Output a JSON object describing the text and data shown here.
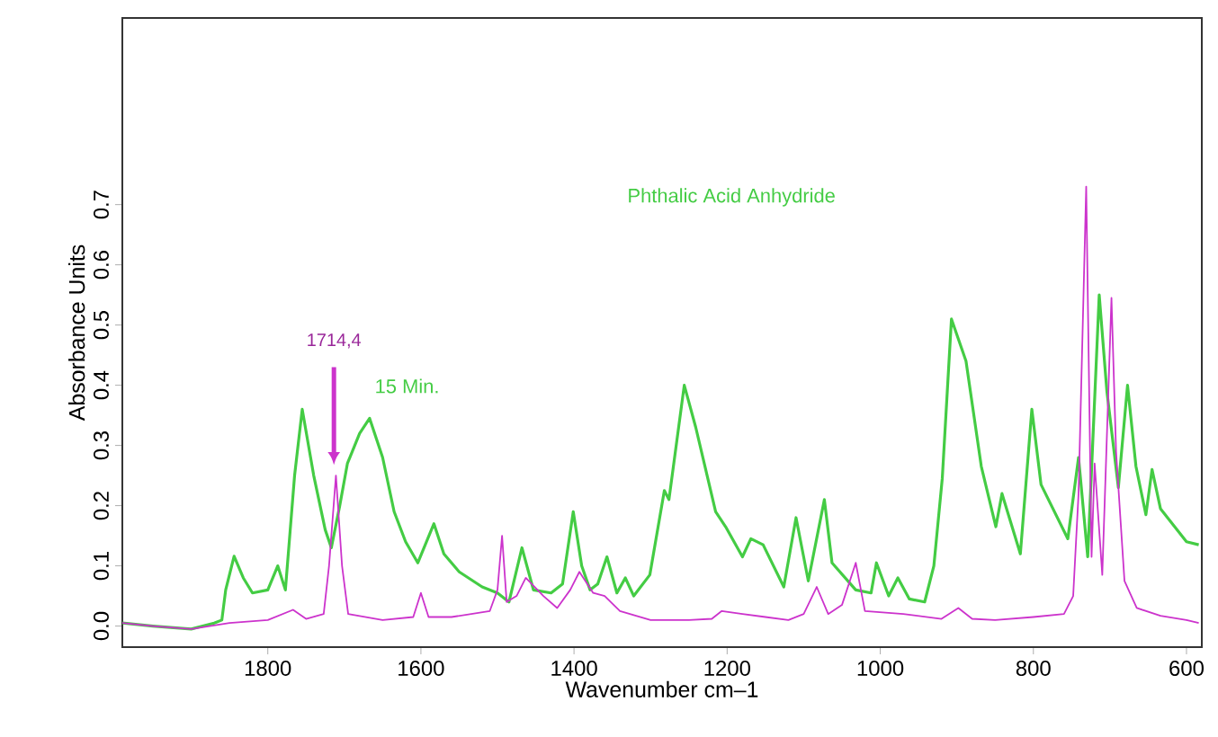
{
  "chart_data": {
    "type": "line",
    "xlabel": "Wavenumber cm–1",
    "ylabel": "Absorbance Units",
    "xlim": [
      1990,
      580
    ],
    "ylim": [
      -0.035,
      1.01
    ],
    "xticks": [
      1800,
      1600,
      1400,
      1200,
      1000,
      800,
      600
    ],
    "yticks": [
      {
        "value": 0,
        "label": "0.0"
      },
      {
        "value": 0.1,
        "label": "0.1"
      },
      {
        "value": 0.2,
        "label": "0.2"
      },
      {
        "value": 0.3,
        "label": "0.3"
      },
      {
        "value": 0.4,
        "label": "0.4"
      },
      {
        "value": 0.5,
        "label": "0.5"
      },
      {
        "value": 0.6,
        "label": "0.6"
      },
      {
        "value": 0.7,
        "label": "0.7"
      }
    ],
    "series": [
      {
        "name": "Phthalic Acid Anhydride",
        "color": "#44cc44",
        "x": [
          1990,
          1950,
          1900,
          1870,
          1860,
          1855,
          1844,
          1832,
          1820,
          1800,
          1787,
          1777,
          1765,
          1755,
          1740,
          1725,
          1717,
          1706,
          1696,
          1680,
          1667,
          1650,
          1635,
          1620,
          1604,
          1583,
          1570,
          1550,
          1520,
          1500,
          1485,
          1468,
          1453,
          1430,
          1415,
          1401,
          1390,
          1379,
          1369,
          1357,
          1344,
          1333,
          1322,
          1301,
          1282,
          1276,
          1256,
          1241,
          1215,
          1202,
          1180,
          1169,
          1153,
          1126,
          1110,
          1094,
          1073,
          1063,
          1032,
          1012,
          1005,
          989,
          977,
          962,
          942,
          930,
          919,
          907,
          888,
          868,
          849,
          841,
          817,
          802,
          790,
          755,
          741,
          729,
          714,
          704,
          689,
          677,
          666,
          653,
          645,
          634,
          600,
          584
        ],
        "values": [
          0.005,
          0.0,
          -0.005,
          0.005,
          0.01,
          0.06,
          0.116,
          0.08,
          0.055,
          0.06,
          0.1,
          0.06,
          0.25,
          0.36,
          0.25,
          0.16,
          0.13,
          0.2,
          0.27,
          0.32,
          0.345,
          0.28,
          0.19,
          0.14,
          0.105,
          0.17,
          0.12,
          0.09,
          0.065,
          0.055,
          0.04,
          0.13,
          0.06,
          0.055,
          0.07,
          0.19,
          0.1,
          0.06,
          0.07,
          0.115,
          0.055,
          0.08,
          0.05,
          0.085,
          0.225,
          0.21,
          0.4,
          0.33,
          0.19,
          0.165,
          0.115,
          0.145,
          0.135,
          0.065,
          0.18,
          0.075,
          0.21,
          0.105,
          0.06,
          0.055,
          0.105,
          0.05,
          0.08,
          0.045,
          0.04,
          0.1,
          0.245,
          0.51,
          0.44,
          0.265,
          0.165,
          0.22,
          0.12,
          0.36,
          0.235,
          0.145,
          0.28,
          0.115,
          0.55,
          0.39,
          0.23,
          0.4,
          0.265,
          0.185,
          0.26,
          0.195,
          0.14,
          0.135
        ]
      },
      {
        "color": "#cc33cc",
        "x": [
          1990,
          1950,
          1900,
          1850,
          1800,
          1767,
          1750,
          1727,
          1720,
          1711,
          1703,
          1695,
          1650,
          1610,
          1600,
          1590,
          1560,
          1510,
          1500,
          1494,
          1488,
          1475,
          1463,
          1440,
          1422,
          1405,
          1393,
          1375,
          1360,
          1340,
          1300,
          1250,
          1220,
          1207,
          1180,
          1150,
          1120,
          1100,
          1083,
          1068,
          1050,
          1032,
          1020,
          970,
          920,
          898,
          880,
          850,
          800,
          760,
          748,
          741,
          731,
          724,
          720,
          710,
          698,
          692,
          681,
          665,
          634,
          600,
          584
        ],
        "values": [
          0.005,
          0.0,
          -0.005,
          0.005,
          0.01,
          0.027,
          0.012,
          0.02,
          0.1,
          0.25,
          0.1,
          0.02,
          0.01,
          0.015,
          0.055,
          0.015,
          0.015,
          0.025,
          0.06,
          0.15,
          0.04,
          0.05,
          0.08,
          0.05,
          0.03,
          0.06,
          0.09,
          0.055,
          0.05,
          0.025,
          0.01,
          0.01,
          0.012,
          0.025,
          0.02,
          0.015,
          0.01,
          0.02,
          0.065,
          0.02,
          0.035,
          0.105,
          0.025,
          0.02,
          0.012,
          0.03,
          0.012,
          0.01,
          0.015,
          0.02,
          0.05,
          0.22,
          0.73,
          0.115,
          0.27,
          0.085,
          0.545,
          0.29,
          0.075,
          0.03,
          0.017,
          0.01,
          0.005
        ]
      }
    ],
    "annotations": [
      "1714,4",
      "15 Min."
    ]
  }
}
